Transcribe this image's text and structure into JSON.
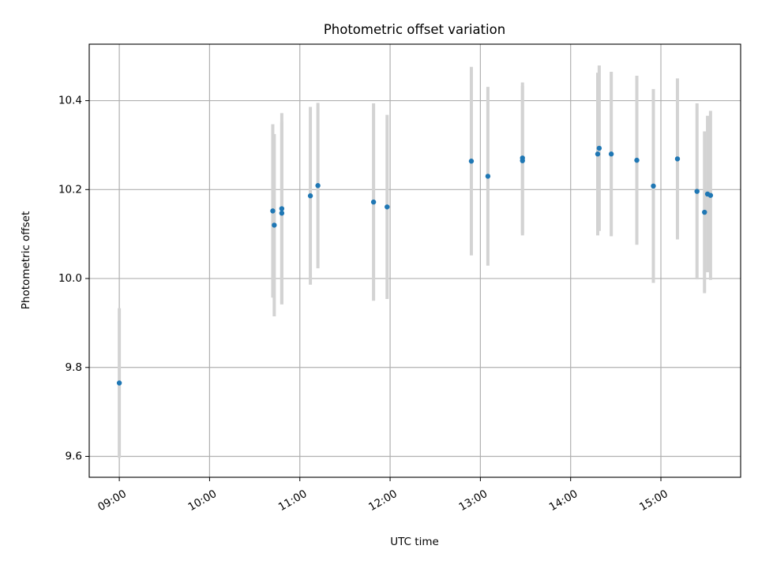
{
  "chart_data": {
    "type": "scatter",
    "title": "Photometric offset variation",
    "xlabel": "UTC time",
    "ylabel": "Photometric offset",
    "x_format": "HH:MM",
    "xlim": [
      "08:40",
      "15:53"
    ],
    "ylim": [
      9.553,
      10.527
    ],
    "x_ticks": [
      "09:00",
      "10:00",
      "11:00",
      "12:00",
      "13:00",
      "14:00",
      "15:00"
    ],
    "y_ticks": [
      "9.6",
      "9.8",
      "10.0",
      "10.2",
      "10.4"
    ],
    "grid": true,
    "colors": {
      "point": "#1f77b4",
      "errorbar": "#d3d3d3",
      "grid": "#b0b0b0"
    },
    "series": [
      {
        "points": [
          {
            "x": "09:00",
            "y": 9.765,
            "err": 0.168
          },
          {
            "x": "10:42",
            "y": 10.152,
            "err": 0.195
          },
          {
            "x": "10:43",
            "y": 10.12,
            "err": 0.205
          },
          {
            "x": "10:48",
            "y": 10.157,
            "err": 0.215
          },
          {
            "x": "10:48",
            "y": 10.147,
            "err": 0.205
          },
          {
            "x": "11:07",
            "y": 10.186,
            "err": 0.2
          },
          {
            "x": "11:12",
            "y": 10.209,
            "err": 0.186
          },
          {
            "x": "11:49",
            "y": 10.172,
            "err": 0.222
          },
          {
            "x": "11:58",
            "y": 10.161,
            "err": 0.207
          },
          {
            "x": "12:54",
            "y": 10.264,
            "err": 0.212
          },
          {
            "x": "13:05",
            "y": 10.23,
            "err": 0.201
          },
          {
            "x": "13:28",
            "y": 10.265,
            "err": 0.168
          },
          {
            "x": "13:28",
            "y": 10.271,
            "err": 0.17
          },
          {
            "x": "14:18",
            "y": 10.28,
            "err": 0.183
          },
          {
            "x": "14:19",
            "y": 10.293,
            "err": 0.186
          },
          {
            "x": "14:27",
            "y": 10.28,
            "err": 0.185
          },
          {
            "x": "14:44",
            "y": 10.266,
            "err": 0.19
          },
          {
            "x": "14:55",
            "y": 10.208,
            "err": 0.218
          },
          {
            "x": "15:11",
            "y": 10.269,
            "err": 0.181
          },
          {
            "x": "15:24",
            "y": 10.196,
            "err": 0.198
          },
          {
            "x": "15:29",
            "y": 10.149,
            "err": 0.182
          },
          {
            "x": "15:31",
            "y": 10.19,
            "err": 0.176
          },
          {
            "x": "15:33",
            "y": 10.187,
            "err": 0.19
          }
        ]
      }
    ]
  }
}
